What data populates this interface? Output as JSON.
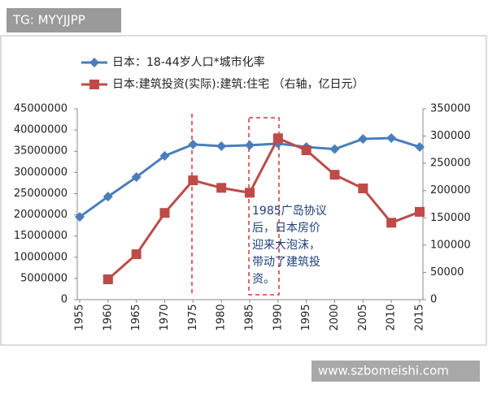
{
  "badge": "TG: MYYJJPP",
  "watermark": "www.szbomeishi.com",
  "chart_data": {
    "type": "line",
    "x": [
      1955,
      1960,
      1965,
      1970,
      1975,
      1980,
      1985,
      1990,
      1995,
      2000,
      2005,
      2010,
      2015
    ],
    "xlim": [
      1955,
      2015
    ],
    "xticks": [
      1955,
      1960,
      1965,
      1970,
      1975,
      1980,
      1985,
      1990,
      1995,
      2000,
      2005,
      2010,
      2015
    ],
    "ylim": [
      0,
      45000000
    ],
    "yticks": [
      0,
      5000000,
      10000000,
      15000000,
      20000000,
      25000000,
      30000000,
      35000000,
      40000000,
      45000000
    ],
    "y2lim": [
      0,
      350000
    ],
    "y2ticks": [
      0,
      50000,
      100000,
      150000,
      200000,
      250000,
      300000,
      350000
    ],
    "legend": "top-left",
    "series": [
      {
        "name": "日本：18-44岁人口*城市化率",
        "color": "#4a7ebb",
        "marker": "diamond",
        "values": [
          19500000,
          24300000,
          28900000,
          33900000,
          36600000,
          36200000,
          36400000,
          36800000,
          36000000,
          35500000,
          37900000,
          38100000,
          36000000
        ]
      },
      {
        "name": "日本:建筑投资(实际):建筑:住宅 （右轴，亿日元）",
        "color": "#be4b48",
        "marker": "square",
        "axis": "y2",
        "values": [
          null,
          37200,
          83300,
          159000,
          218800,
          205000,
          196000,
          296000,
          274000,
          229000,
          204000,
          141000,
          161000
        ]
      }
    ],
    "annotation": [
      "1985广岛协议",
      "后，日本房价",
      "迎来大泡沫，",
      "带动了建筑投",
      "资。"
    ]
  }
}
